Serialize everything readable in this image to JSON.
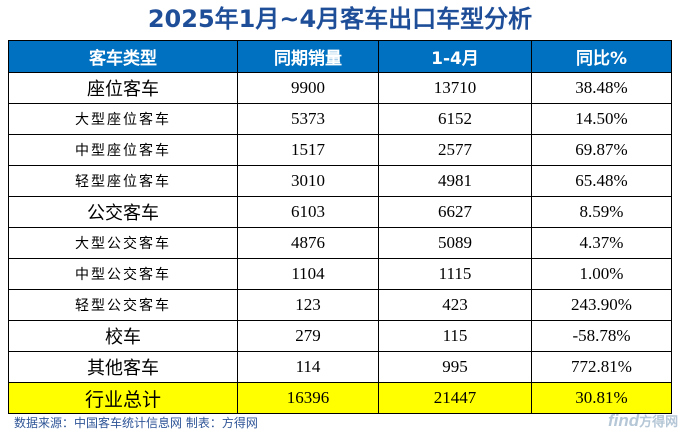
{
  "title": "2025年1月~4月客车出口车型分析",
  "chart_data": {
    "type": "table",
    "columns": [
      "客车类型",
      "同期销量",
      "1-4月",
      "同比%"
    ],
    "rows": [
      {
        "name": "座位客车",
        "level": "main",
        "prior": "9900",
        "current": "13710",
        "yoy": "38.48%"
      },
      {
        "name": "大型座位客车",
        "level": "sub",
        "prior": "5373",
        "current": "6152",
        "yoy": "14.50%"
      },
      {
        "name": "中型座位客车",
        "level": "sub",
        "prior": "1517",
        "current": "2577",
        "yoy": "69.87%"
      },
      {
        "name": "轻型座位客车",
        "level": "sub",
        "prior": "3010",
        "current": "4981",
        "yoy": "65.48%"
      },
      {
        "name": "公交客车",
        "level": "main",
        "prior": "6103",
        "current": "6627",
        "yoy": "8.59%"
      },
      {
        "name": "大型公交客车",
        "level": "sub",
        "prior": "4876",
        "current": "5089",
        "yoy": "4.37%"
      },
      {
        "name": "中型公交客车",
        "level": "sub",
        "prior": "1104",
        "current": "1115",
        "yoy": "1.00%"
      },
      {
        "name": "轻型公交客车",
        "level": "sub",
        "prior": "123",
        "current": "423",
        "yoy": "243.90%"
      },
      {
        "name": "校车",
        "level": "main",
        "prior": "279",
        "current": "115",
        "yoy": "-58.78%"
      },
      {
        "name": "其他客车",
        "level": "main",
        "prior": "114",
        "current": "995",
        "yoy": "772.81%"
      }
    ],
    "total": {
      "name": "行业总计",
      "prior": "16396",
      "current": "21447",
      "yoy": "30.81%"
    }
  },
  "footer": "数据来源：中国客车统计信息网 制表：方得网",
  "logo": {
    "latin": "find",
    "chinese": "方得网"
  },
  "colors": {
    "header_bg": "#0070c0",
    "title": "#1f4e99",
    "total_bg": "#ffff00"
  }
}
